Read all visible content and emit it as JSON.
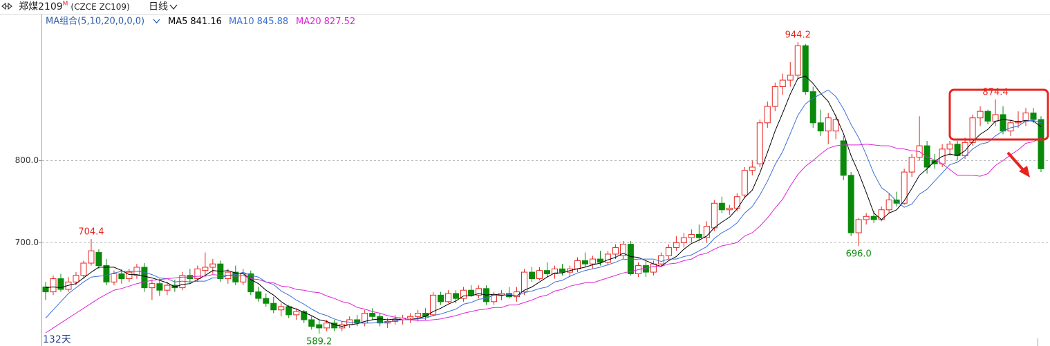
{
  "header": {
    "symbol": "郑煤2109",
    "badge": "M",
    "code": "(CZCE ZC109)",
    "period": "日线"
  },
  "chart_data": {
    "type": "candlestick",
    "indicator_label": "MA组合(5,10,20,0,0,0)",
    "footer": "132天",
    "up_color": "#e8231d",
    "down_color": "#0a8a0a",
    "grid": true,
    "ylim": [
      574,
      962
    ],
    "yticks": [
      {
        "value": 700,
        "label": "700.0"
      },
      {
        "value": 800,
        "label": "800.0"
      }
    ],
    "open": [
      646,
      640,
      656,
      643,
      652,
      660,
      675,
      688,
      672,
      652,
      662,
      656,
      660,
      670,
      645,
      650,
      642,
      648,
      645,
      660,
      656,
      666,
      670,
      674,
      656,
      664,
      652,
      662,
      640,
      632,
      626,
      618,
      622,
      612,
      616,
      606,
      600,
      596,
      602,
      596,
      600,
      606,
      602,
      614,
      610,
      602,
      604,
      606,
      608,
      610,
      614,
      612,
      636,
      628,
      638,
      632,
      642,
      636,
      644,
      628,
      636,
      638,
      634,
      640,
      664,
      656,
      666,
      662,
      668,
      664,
      668,
      678,
      674,
      680,
      676,
      686,
      684,
      698,
      662,
      672,
      664,
      674,
      684,
      694,
      700,
      706,
      710,
      706,
      718,
      748,
      740,
      742,
      758,
      788,
      796,
      846,
      866,
      890,
      898,
      904,
      940,
      884,
      846,
      836,
      836,
      824,
      782,
      712,
      728,
      732,
      728,
      740,
      752,
      748,
      786,
      804,
      818,
      800,
      796,
      814,
      820,
      806,
      822,
      852,
      860,
      848,
      856,
      836,
      846,
      848,
      858,
      850
    ],
    "high": [
      652,
      660,
      662,
      658,
      664,
      678,
      704.4,
      692,
      680,
      666,
      668,
      668,
      674,
      675,
      655,
      656,
      652,
      655,
      664,
      668,
      672,
      688,
      680,
      678,
      668,
      672,
      668,
      666,
      646,
      638,
      634,
      626,
      624,
      620,
      618,
      610,
      606,
      606,
      606,
      604,
      610,
      612,
      618,
      620,
      614,
      608,
      612,
      612,
      614,
      618,
      620,
      640,
      640,
      642,
      642,
      646,
      648,
      648,
      648,
      640,
      642,
      646,
      646,
      668,
      670,
      670,
      676,
      672,
      674,
      672,
      682,
      688,
      684,
      690,
      690,
      698,
      702,
      702,
      676,
      678,
      678,
      688,
      698,
      708,
      712,
      716,
      722,
      726,
      752,
      756,
      746,
      760,
      792,
      800,
      850,
      872,
      895,
      906,
      920,
      944.2,
      942,
      890,
      862,
      858,
      856,
      830,
      786,
      730,
      736,
      738,
      744,
      760,
      762,
      790,
      808,
      854,
      824,
      808,
      820,
      824,
      824,
      828,
      856,
      866,
      862,
      874.4,
      866,
      850,
      860,
      864,
      864,
      854
    ],
    "low": [
      630,
      636,
      640,
      640,
      648,
      656,
      672,
      668,
      648,
      648,
      650,
      652,
      656,
      640,
      630,
      635,
      636,
      640,
      642,
      650,
      652,
      660,
      662,
      652,
      650,
      648,
      648,
      636,
      628,
      622,
      614,
      610,
      608,
      606,
      602,
      594,
      589.2,
      592,
      592,
      592,
      596,
      598,
      598,
      606,
      598,
      596,
      600,
      600,
      602,
      604,
      606,
      610,
      624,
      626,
      626,
      628,
      634,
      632,
      624,
      624,
      630,
      632,
      628,
      636,
      652,
      654,
      658,
      656,
      660,
      658,
      664,
      670,
      668,
      672,
      672,
      680,
      680,
      660,
      658,
      658,
      660,
      670,
      680,
      690,
      694,
      700,
      702,
      700,
      714,
      736,
      734,
      738,
      754,
      782,
      792,
      840,
      860,
      880,
      890,
      900,
      880,
      840,
      830,
      820,
      826,
      776,
      708,
      696,
      722,
      724,
      726,
      736,
      744,
      746,
      780,
      800,
      784,
      790,
      792,
      806,
      800,
      802,
      818,
      842,
      844,
      842,
      832,
      830,
      840,
      842,
      846,
      786
    ],
    "close": [
      640,
      656,
      643,
      652,
      660,
      675,
      690,
      672,
      652,
      662,
      656,
      664,
      670,
      645,
      650,
      642,
      648,
      645,
      660,
      656,
      668,
      670,
      674,
      656,
      664,
      652,
      662,
      640,
      632,
      626,
      618,
      622,
      612,
      616,
      606,
      598,
      596,
      602,
      596,
      600,
      606,
      602,
      614,
      610,
      602,
      604,
      606,
      608,
      610,
      614,
      610,
      636,
      628,
      638,
      632,
      642,
      636,
      644,
      628,
      636,
      638,
      634,
      640,
      664,
      656,
      666,
      662,
      668,
      664,
      668,
      678,
      674,
      680,
      676,
      686,
      694,
      698,
      662,
      672,
      664,
      674,
      684,
      694,
      700,
      706,
      710,
      706,
      720,
      748,
      740,
      742,
      756,
      788,
      792,
      846,
      866,
      890,
      898,
      904,
      940,
      884,
      846,
      836,
      852,
      850,
      782,
      712,
      728,
      732,
      728,
      740,
      752,
      748,
      786,
      804,
      818,
      792,
      796,
      814,
      820,
      806,
      822,
      852,
      860,
      848,
      856,
      836,
      846,
      848,
      858,
      850,
      790
    ],
    "series": [
      {
        "name": "MA5",
        "color": "#000000",
        "values": [
          645,
          646,
          645,
          648,
          650,
          657,
          664,
          670,
          670,
          670,
          666,
          661,
          661,
          659,
          657,
          654,
          651,
          646,
          649,
          650,
          655,
          660,
          666,
          665,
          666,
          663,
          662,
          655,
          650,
          642,
          636,
          628,
          622,
          619,
          615,
          611,
          606,
          604,
          600,
          598,
          600,
          601,
          604,
          606,
          607,
          606,
          607,
          606,
          606,
          608,
          610,
          616,
          620,
          625,
          629,
          635,
          635,
          638,
          636,
          637,
          636,
          636,
          635,
          642,
          646,
          652,
          658,
          663,
          663,
          666,
          668,
          670,
          673,
          675,
          679,
          682,
          687,
          683,
          682,
          678,
          674,
          671,
          678,
          683,
          692,
          699,
          703,
          708,
          718,
          725,
          731,
          741,
          755,
          764,
          785,
          810,
          836,
          858,
          881,
          900,
          903,
          894,
          882,
          872,
          854,
          833,
          806,
          785,
          761,
          736,
          728,
          736,
          740,
          751,
          766,
          782,
          790,
          799,
          805,
          808,
          806,
          812,
          823,
          832,
          838,
          848,
          850,
          849,
          847,
          849,
          848,
          841.16
        ]
      },
      {
        "name": "MA10",
        "color": "#3a6fd8",
        "values": [
          608,
          618,
          628,
          638,
          645,
          652,
          658,
          659,
          660,
          663,
          665,
          665,
          665,
          664,
          661,
          657,
          656,
          652,
          653,
          652,
          653,
          653,
          657,
          657,
          660,
          661,
          664,
          660,
          658,
          652,
          649,
          641,
          636,
          630,
          625,
          619,
          614,
          611,
          607,
          604,
          603,
          602,
          602,
          602,
          603,
          603,
          605,
          606,
          606,
          607,
          608,
          611,
          613,
          616,
          619,
          625,
          627,
          631,
          632,
          636,
          635,
          637,
          635,
          639,
          641,
          644,
          646,
          652,
          654,
          659,
          663,
          666,
          668,
          670,
          673,
          676,
          680,
          679,
          680,
          680,
          680,
          677,
          680,
          680,
          683,
          685,
          690,
          695,
          705,
          712,
          717,
          724,
          736,
          744,
          758,
          775,
          795,
          811,
          833,
          855,
          869,
          876,
          881,
          886,
          878,
          863,
          844,
          828,
          807,
          784,
          767,
          760,
          750,
          743,
          747,
          759,
          765,
          775,
          785,
          795,
          798,
          805,
          814,
          820,
          822,
          830,
          836,
          840,
          842,
          848,
          849,
          845.88
        ]
      },
      {
        "name": "MA20",
        "color": "#e021d8",
        "values": [
          590,
          596,
          602,
          608,
          614,
          620,
          626,
          632,
          637,
          642,
          644,
          647,
          650,
          652,
          654,
          655,
          656,
          657,
          658,
          658,
          659,
          659,
          661,
          660,
          660,
          659,
          660,
          656,
          655,
          652,
          651,
          647,
          646,
          643,
          642,
          640,
          639,
          635,
          632,
          628,
          626,
          621,
          619,
          616,
          614,
          611,
          609,
          608,
          606,
          605,
          605,
          606,
          607,
          609,
          611,
          614,
          616,
          618,
          619,
          621,
          621,
          624,
          624,
          627,
          630,
          634,
          636,
          641,
          643,
          647,
          649,
          651,
          651,
          654,
          657,
          660,
          663,
          665,
          667,
          669,
          671,
          671,
          674,
          675,
          678,
          680,
          685,
          687,
          692,
          696,
          698,
          700,
          708,
          712,
          720,
          730,
          742,
          753,
          769,
          783,
          793,
          800,
          808,
          815,
          818,
          819,
          819,
          819,
          820,
          819,
          818,
          818,
          815,
          814,
          812,
          811,
          804,
          801,
          796,
          789,
          782,
          782,
          782,
          781,
          784,
          794,
          800,
          807,
          813,
          821,
          823,
          827.52
        ]
      }
    ],
    "annotations": [
      {
        "value": 704.4,
        "label": "704.4"
      },
      {
        "value": 589.2,
        "label": "589.2"
      },
      {
        "value": 944.2,
        "label": "944.2"
      },
      {
        "value": 696,
        "label": "696.0"
      },
      {
        "value": 874.4,
        "label": "874.4"
      }
    ]
  }
}
